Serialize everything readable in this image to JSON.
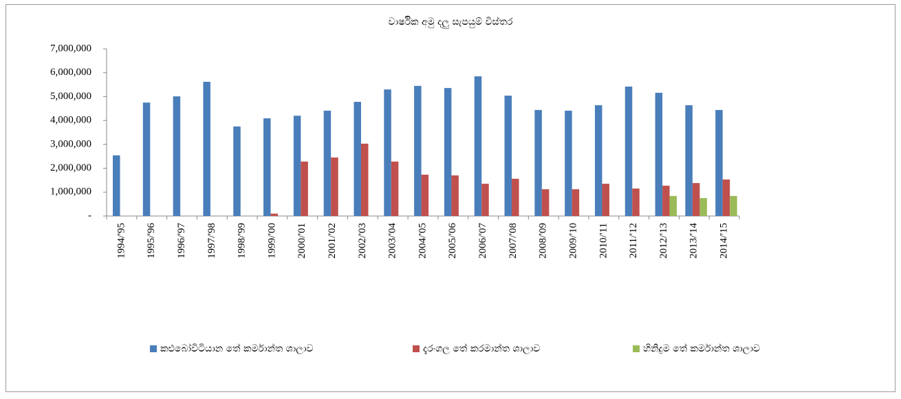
{
  "chart_data": {
    "type": "bar",
    "title": "වාර්ෂික අමු දලු සැපයුම් විස්තර",
    "categories": [
      "1994/'95",
      "1995/'96",
      "1996/'97",
      "1997/'98",
      "1998/'99",
      "1999/'00",
      "2000/'01",
      "2001/'02",
      "2002/'03",
      "2003/'04",
      "2004/'05",
      "2005/'06",
      "2006/'07",
      "2007/'08",
      "2008/'09",
      "2009/'10",
      "2010/'11",
      "2011/'12",
      "2012/'13",
      "2013/'14",
      "2014/'15"
    ],
    "series": [
      {
        "name": "කළුබෝවිටියාන තේ කර්මාන්ත ශාලාව",
        "color": "#4a7ebb",
        "values": [
          2540000,
          4750000,
          5010000,
          5620000,
          3750000,
          4090000,
          4200000,
          4410000,
          4780000,
          5300000,
          5450000,
          5360000,
          5850000,
          5040000,
          4440000,
          4410000,
          4640000,
          5420000,
          5160000,
          4640000,
          4440000
        ]
      },
      {
        "name": "දැරංගල තේ කරමාන්ත ශාලාව",
        "color": "#c0504d",
        "values": [
          null,
          null,
          null,
          null,
          null,
          100000,
          2280000,
          2450000,
          3030000,
          2280000,
          1730000,
          1700000,
          1350000,
          1560000,
          1120000,
          1120000,
          1350000,
          1150000,
          1270000,
          1380000,
          1530000
        ]
      },
      {
        "name": "හිනිදුම තේ කර්මාන්ත ශාලාව",
        "color": "#9bbb59",
        "values": [
          null,
          null,
          null,
          null,
          null,
          null,
          null,
          null,
          null,
          null,
          null,
          null,
          null,
          null,
          null,
          null,
          null,
          null,
          840000,
          750000,
          840000
        ]
      }
    ],
    "ylim": [
      0,
      7000000
    ],
    "yticks": [
      {
        "value": 0,
        "label": "-"
      },
      {
        "value": 1000000,
        "label": "1,000,000"
      },
      {
        "value": 2000000,
        "label": "2,000,000"
      },
      {
        "value": 3000000,
        "label": "3,000,000"
      },
      {
        "value": 4000000,
        "label": "4,000,000"
      },
      {
        "value": 5000000,
        "label": "5,000,000"
      },
      {
        "value": 6000000,
        "label": "6,000,000"
      },
      {
        "value": 7000000,
        "label": "7,000,000"
      }
    ],
    "legend": "bottom"
  }
}
